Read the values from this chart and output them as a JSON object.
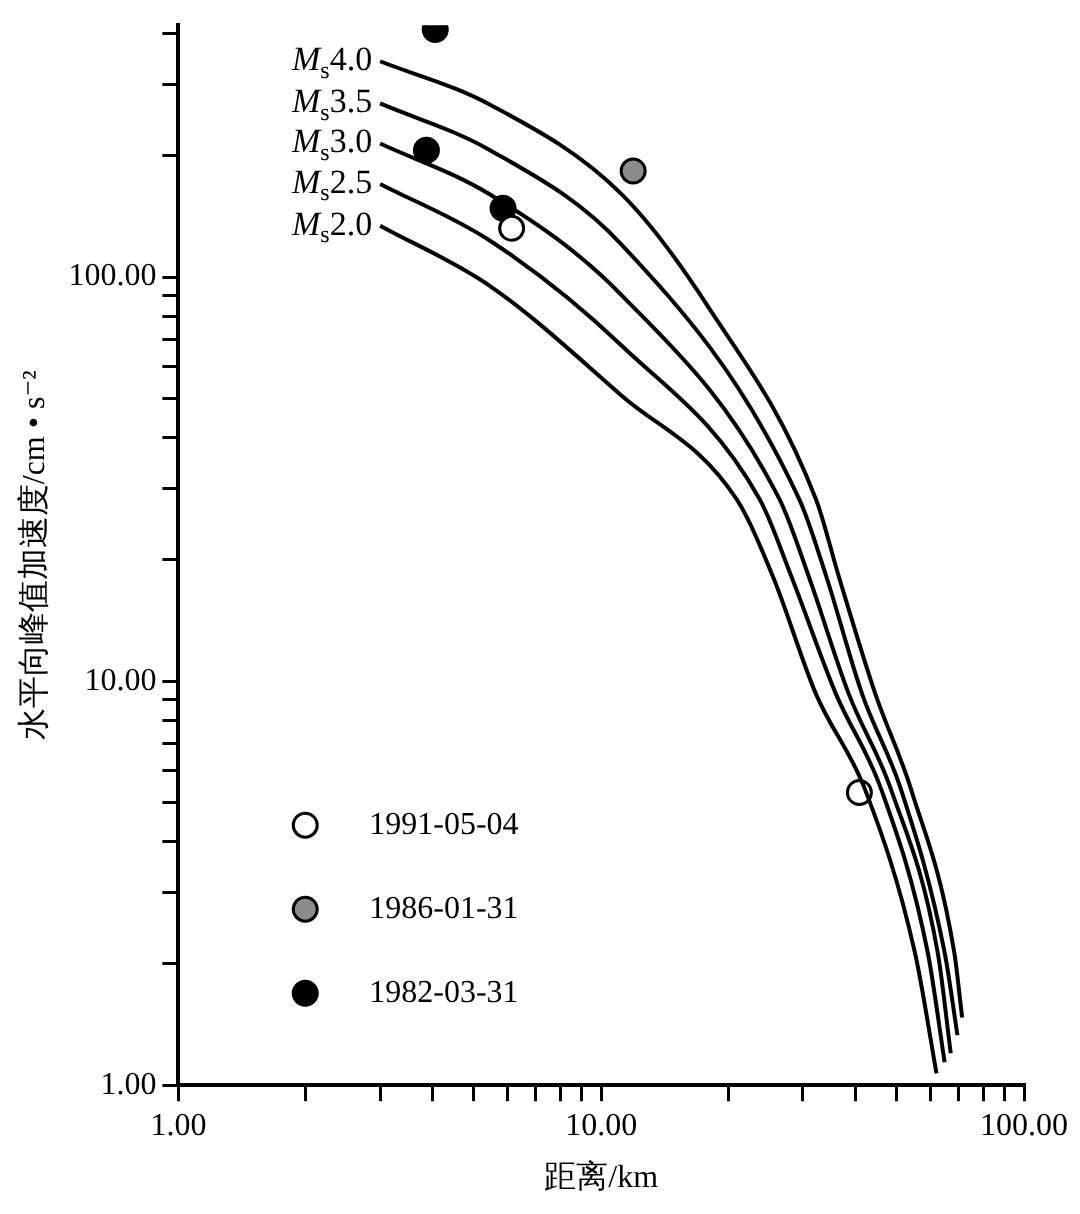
{
  "chart_data": {
    "type": "line",
    "xlabel": "距离/km",
    "ylabel": "水平向峰值加速度/cm • s⁻²",
    "log": "xy",
    "grid": false,
    "legend": "bottom left",
    "xlim": [
      1,
      100
    ],
    "ylim": [
      1,
      420
    ],
    "xticks": [
      {
        "value": 1,
        "label": "1.00"
      },
      {
        "value": 2,
        "label": null
      },
      {
        "value": 3,
        "label": null
      },
      {
        "value": 4,
        "label": null
      },
      {
        "value": 5,
        "label": null
      },
      {
        "value": 6,
        "label": null
      },
      {
        "value": 7,
        "label": null
      },
      {
        "value": 8,
        "label": null
      },
      {
        "value": 9,
        "label": null
      },
      {
        "value": 10,
        "label": "10.00"
      },
      {
        "value": 20,
        "label": null
      },
      {
        "value": 30,
        "label": null
      },
      {
        "value": 40,
        "label": null
      },
      {
        "value": 50,
        "label": null
      },
      {
        "value": 60,
        "label": null
      },
      {
        "value": 70,
        "label": null
      },
      {
        "value": 80,
        "label": null
      },
      {
        "value": 90,
        "label": null
      },
      {
        "value": 100,
        "label": "100.00"
      }
    ],
    "yticks": [
      {
        "value": 1,
        "label": "1.00"
      },
      {
        "value": 2,
        "label": null
      },
      {
        "value": 3,
        "label": null
      },
      {
        "value": 4,
        "label": null
      },
      {
        "value": 5,
        "label": null
      },
      {
        "value": 6,
        "label": null
      },
      {
        "value": 7,
        "label": null
      },
      {
        "value": 8,
        "label": null
      },
      {
        "value": 9,
        "label": null
      },
      {
        "value": 10,
        "label": "10.00"
      },
      {
        "value": 20,
        "label": null
      },
      {
        "value": 30,
        "label": null
      },
      {
        "value": 40,
        "label": null
      },
      {
        "value": 50,
        "label": null
      },
      {
        "value": 60,
        "label": null
      },
      {
        "value": 70,
        "label": null
      },
      {
        "value": 80,
        "label": null
      },
      {
        "value": 90,
        "label": null
      },
      {
        "value": 100,
        "label": "100.00"
      },
      {
        "value": 200,
        "label": null
      },
      {
        "value": 300,
        "label": null
      },
      {
        "value": 400,
        "label": null
      }
    ],
    "series": [
      {
        "name": "M$_{s}$4.0",
        "type": "line",
        "color": "#000000",
        "x": [
          3,
          5.46,
          11.2,
          17.8,
          32.2,
          36.5,
          44.5,
          54.2,
          68.4,
          71.4
        ],
        "values": [
          342,
          267,
          160,
          85.2,
          28.2,
          18.1,
          9.3,
          5.35,
          2.13,
          1.47
        ]
      },
      {
        "name": "M$_{s}$3.5",
        "type": "line",
        "color": "#000000",
        "x": [
          3,
          5.46,
          11.2,
          29.4,
          34.1,
          41.4,
          51.3,
          64.9,
          69.6
        ],
        "values": [
          269,
          206,
          120,
          28.2,
          18.1,
          9.3,
          5.35,
          2.13,
          1.33
        ]
      },
      {
        "name": "M$_{s}$3.0",
        "type": "line",
        "color": "#000000",
        "x": [
          3,
          5.46,
          11.2,
          26.4,
          31,
          38.5,
          48.6,
          62.5,
          67.1
        ],
        "values": [
          214,
          160,
          90,
          28.2,
          18.1,
          9.3,
          5.35,
          2.13,
          1.2
        ]
      },
      {
        "name": "M$_{s}$2.5",
        "type": "line",
        "color": "#000000",
        "x": [
          3,
          5.46,
          11.2,
          23.7,
          28.2,
          35.9,
          46.1,
          59.2,
          64.9
        ],
        "values": [
          170,
          123,
          67.5,
          28.2,
          18.1,
          9.3,
          5.35,
          2.13,
          1.14
        ]
      },
      {
        "name": "M$_{s}$2.0",
        "type": "line",
        "color": "#000000",
        "x": [
          3,
          5.46,
          11.2,
          20.9,
          25.5,
          32.2,
          42.2,
          55.2,
          62.1
        ],
        "values": [
          134,
          95,
          50.8,
          28.2,
          18.1,
          9.3,
          5.35,
          2.13,
          1.07
        ]
      },
      {
        "name": "1991-05-04",
        "type": "scatter",
        "marker": "circle",
        "color": "#ffffff",
        "x": [
          6.14,
          40.8
        ],
        "values": [
          132,
          5.3
        ]
      },
      {
        "name": "1986-01-31",
        "type": "scatter",
        "marker": "circle",
        "color": "#8c8c8c",
        "x": [
          11.9
        ],
        "values": [
          183
        ]
      },
      {
        "name": "1982-03-31",
        "type": "scatter",
        "marker": "circle",
        "color": "#000000",
        "x": [
          4.05,
          3.86,
          5.86
        ],
        "values": [
          410,
          206,
          148
        ]
      }
    ]
  }
}
